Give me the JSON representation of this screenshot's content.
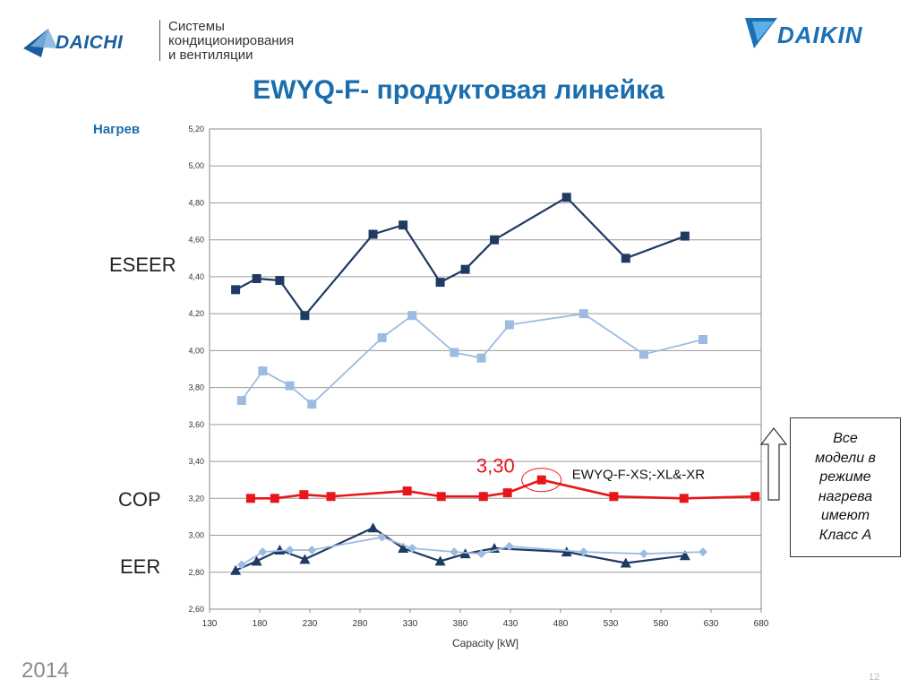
{
  "header": {
    "daichi_brand": "DAICHI",
    "daichi_tagline": [
      "Системы",
      "кондиционирования",
      "и вентиляции"
    ],
    "daikin_brand": "DAIKIN"
  },
  "title": "EWYQ-F- продуктовая линейка",
  "mode_label": "Нагрев",
  "series_labels": {
    "eseer": "ESEER",
    "cop": "COP",
    "eer": "EER"
  },
  "note_box": {
    "lines": [
      "Все",
      "модели в",
      "режиме",
      "нагрева",
      "имеют",
      "Класс А"
    ]
  },
  "footer": {
    "year": "2014",
    "page_number": "12"
  },
  "colors": {
    "title": "#1a6eae",
    "eseer_dark": "#1f3a63",
    "eseer_light": "#9dbbe0",
    "cop": "#e8161b",
    "eer_dark": "#1f3a63",
    "eer_light": "#9dbbe0",
    "highlight": "#e8161b"
  },
  "chart_data": {
    "type": "line",
    "title": "",
    "xlabel": "Capacity [kW]",
    "ylabel": "",
    "xlim": [
      130,
      680
    ],
    "ylim": [
      2.6,
      5.2
    ],
    "x_ticks": [
      "130",
      "180",
      "230",
      "280",
      "330",
      "380",
      "430",
      "480",
      "530",
      "580",
      "630",
      "680"
    ],
    "y_ticks": [
      "2,60",
      "2,80",
      "3,00",
      "3,20",
      "3,40",
      "3,60",
      "3,80",
      "4,00",
      "4,20",
      "4,40",
      "4,60",
      "4,80",
      "5,00",
      "5,20"
    ],
    "grid": "horizontal",
    "series": [
      {
        "key": "eseer_dark",
        "marker": "square",
        "x": [
          156,
          177,
          200,
          225,
          293,
          323,
          360,
          385,
          414,
          486,
          545,
          604
        ],
        "y": [
          4.33,
          4.39,
          4.38,
          4.19,
          4.63,
          4.68,
          4.37,
          4.44,
          4.6,
          4.83,
          4.5,
          4.62
        ]
      },
      {
        "key": "eseer_light",
        "marker": "square",
        "x": [
          162,
          183,
          210,
          232,
          302,
          332,
          374,
          401,
          429,
          503,
          563,
          622
        ],
        "y": [
          3.73,
          3.89,
          3.81,
          3.71,
          4.07,
          4.19,
          3.99,
          3.96,
          4.14,
          4.2,
          3.98,
          4.06
        ]
      },
      {
        "key": "cop",
        "marker": "square",
        "x": [
          171,
          195,
          224,
          251,
          327,
          361,
          403,
          427,
          461,
          533,
          603,
          674
        ],
        "y": [
          3.2,
          3.2,
          3.22,
          3.21,
          3.24,
          3.21,
          3.21,
          3.23,
          3.3,
          3.21,
          3.2,
          3.21
        ]
      },
      {
        "key": "eer_dark",
        "marker": "triangle",
        "x": [
          156,
          177,
          200,
          225,
          293,
          323,
          360,
          385,
          414,
          486,
          545,
          604
        ],
        "y": [
          2.81,
          2.86,
          2.92,
          2.87,
          3.04,
          2.93,
          2.86,
          2.9,
          2.93,
          2.91,
          2.85,
          2.89
        ]
      },
      {
        "key": "eer_light",
        "marker": "diamond",
        "x": [
          162,
          183,
          210,
          232,
          302,
          332,
          374,
          401,
          429,
          503,
          563,
          622
        ],
        "y": [
          2.84,
          2.91,
          2.92,
          2.92,
          2.99,
          2.93,
          2.91,
          2.9,
          2.94,
          2.91,
          2.9,
          2.91
        ]
      }
    ],
    "annotations": [
      {
        "text": "3,30",
        "x": 461,
        "y": 3.3,
        "circled": true
      },
      {
        "text": "EWYQ-F-XS;-XL&-XR",
        "x": 520,
        "y": 3.33
      }
    ]
  }
}
